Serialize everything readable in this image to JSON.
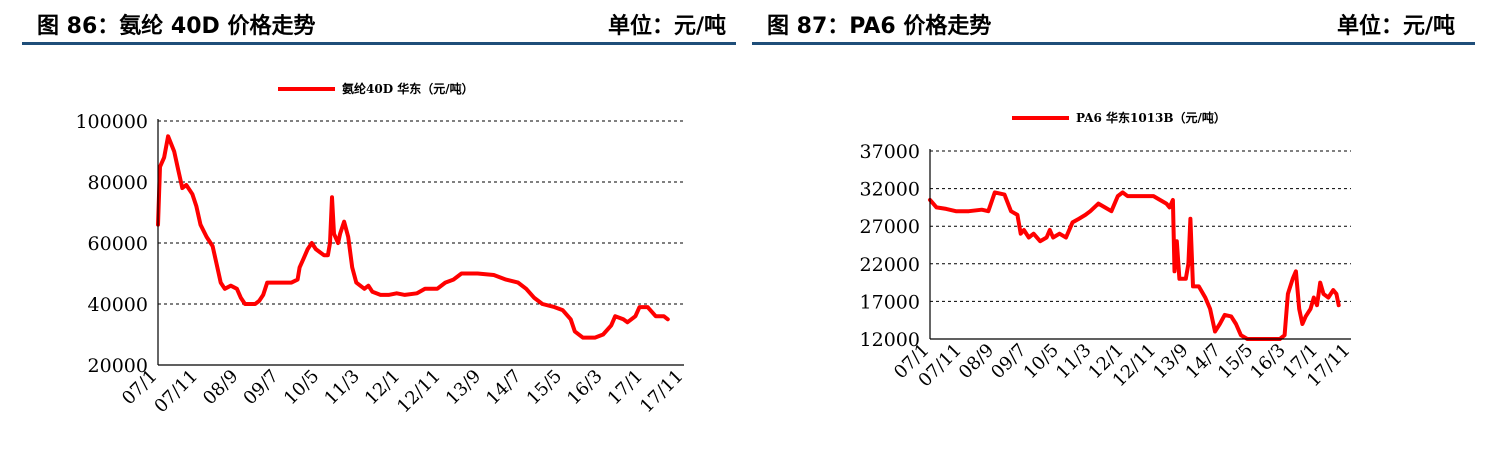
{
  "panels": [
    {
      "title": "图 86：氨纶 40D 价格走势",
      "unit": "单位：元/吨",
      "chart_data": {
        "type": "line",
        "legend_position": "top",
        "grid": true,
        "ylim": [
          20000,
          100000
        ],
        "yticks": [
          "100000",
          "80000",
          "60000",
          "40000",
          "20000"
        ],
        "xticks": [
          "07/1",
          "07/11",
          "08/9",
          "09/7",
          "10/5",
          "11/3",
          "12/1",
          "12/11",
          "13/9",
          "14/7",
          "15/5",
          "16/3",
          "17/1",
          "17/11"
        ],
        "series": [
          {
            "name": "氨纶40D 华东（元/吨）",
            "color": "#ff0000",
            "points": [
              [
                0,
                66000
              ],
              [
                0.05,
                85000
              ],
              [
                0.15,
                88000
              ],
              [
                0.25,
                95000
              ],
              [
                0.4,
                90000
              ],
              [
                0.5,
                84000
              ],
              [
                0.6,
                78000
              ],
              [
                0.7,
                79000
              ],
              [
                0.85,
                76000
              ],
              [
                0.95,
                72000
              ],
              [
                1.05,
                66000
              ],
              [
                1.2,
                62000
              ],
              [
                1.35,
                59000
              ],
              [
                1.45,
                53000
              ],
              [
                1.55,
                47000
              ],
              [
                1.65,
                45000
              ],
              [
                1.8,
                46000
              ],
              [
                1.95,
                45000
              ],
              [
                2.05,
                42000
              ],
              [
                2.15,
                40000
              ],
              [
                2.4,
                40000
              ],
              [
                2.5,
                41000
              ],
              [
                2.6,
                43000
              ],
              [
                2.7,
                47000
              ],
              [
                3.0,
                47000
              ],
              [
                3.3,
                47000
              ],
              [
                3.45,
                48000
              ],
              [
                3.5,
                52000
              ],
              [
                3.6,
                55000
              ],
              [
                3.7,
                58000
              ],
              [
                3.8,
                60000
              ],
              [
                3.9,
                58000
              ],
              [
                4.0,
                57000
              ],
              [
                4.1,
                56000
              ],
              [
                4.2,
                56000
              ],
              [
                4.25,
                60000
              ],
              [
                4.3,
                75000
              ],
              [
                4.35,
                63000
              ],
              [
                4.45,
                60000
              ],
              [
                4.5,
                63000
              ],
              [
                4.6,
                67000
              ],
              [
                4.7,
                62000
              ],
              [
                4.8,
                52000
              ],
              [
                4.9,
                47000
              ],
              [
                5.0,
                46000
              ],
              [
                5.1,
                45000
              ],
              [
                5.2,
                46000
              ],
              [
                5.3,
                44000
              ],
              [
                5.5,
                43000
              ],
              [
                5.7,
                43000
              ],
              [
                5.9,
                43500
              ],
              [
                6.1,
                43000
              ],
              [
                6.4,
                43500
              ],
              [
                6.6,
                45000
              ],
              [
                6.9,
                45000
              ],
              [
                7.1,
                47000
              ],
              [
                7.3,
                48000
              ],
              [
                7.5,
                50000
              ],
              [
                7.9,
                50000
              ],
              [
                8.3,
                49500
              ],
              [
                8.6,
                48000
              ],
              [
                8.9,
                47000
              ],
              [
                9.1,
                45000
              ],
              [
                9.3,
                42000
              ],
              [
                9.5,
                40000
              ],
              [
                9.8,
                39000
              ],
              [
                10.0,
                38000
              ],
              [
                10.2,
                35000
              ],
              [
                10.3,
                31000
              ],
              [
                10.5,
                29000
              ],
              [
                10.8,
                29000
              ],
              [
                11.0,
                30000
              ],
              [
                11.2,
                33000
              ],
              [
                11.3,
                36000
              ],
              [
                11.5,
                35000
              ],
              [
                11.6,
                34000
              ],
              [
                11.8,
                36000
              ],
              [
                11.9,
                39000
              ],
              [
                12.1,
                39000
              ],
              [
                12.3,
                36000
              ],
              [
                12.5,
                36000
              ],
              [
                12.6,
                35000
              ]
            ]
          }
        ]
      }
    },
    {
      "title": "图 87：PA6 价格走势",
      "unit": "单位：元/吨",
      "chart_data": {
        "type": "line",
        "legend_position": "top",
        "grid": true,
        "ylim": [
          12000,
          37000
        ],
        "yticks": [
          "37000",
          "32000",
          "27000",
          "22000",
          "17000",
          "12000"
        ],
        "xticks": [
          "07/1",
          "07/11",
          "08/9",
          "09/7",
          "10/5",
          "11/3",
          "12/1",
          "12/11",
          "13/9",
          "14/7",
          "15/5",
          "16/3",
          "17/1",
          "17/11"
        ],
        "series": [
          {
            "name": "PA6 华东1013B（元/吨）",
            "color": "#ff0000",
            "points": [
              [
                0,
                30500
              ],
              [
                0.1,
                30000
              ],
              [
                0.2,
                29500
              ],
              [
                0.5,
                29300
              ],
              [
                0.8,
                29000
              ],
              [
                1.2,
                29000
              ],
              [
                1.6,
                29200
              ],
              [
                1.8,
                29000
              ],
              [
                2.0,
                31500
              ],
              [
                2.3,
                31200
              ],
              [
                2.5,
                29000
              ],
              [
                2.7,
                28500
              ],
              [
                2.8,
                26000
              ],
              [
                2.9,
                26500
              ],
              [
                3.05,
                25500
              ],
              [
                3.2,
                26000
              ],
              [
                3.4,
                25000
              ],
              [
                3.6,
                25500
              ],
              [
                3.7,
                26500
              ],
              [
                3.8,
                25500
              ],
              [
                4.0,
                26000
              ],
              [
                4.2,
                25500
              ],
              [
                4.4,
                27500
              ],
              [
                4.6,
                28000
              ],
              [
                4.8,
                28500
              ],
              [
                4.95,
                29000
              ],
              [
                5.2,
                30000
              ],
              [
                5.4,
                29500
              ],
              [
                5.6,
                29000
              ],
              [
                5.8,
                31000
              ],
              [
                5.95,
                31500
              ],
              [
                6.1,
                31000
              ],
              [
                6.5,
                31000
              ],
              [
                6.9,
                31000
              ],
              [
                7.1,
                30500
              ],
              [
                7.3,
                30000
              ],
              [
                7.4,
                29500
              ],
              [
                7.5,
                30500
              ],
              [
                7.55,
                21000
              ],
              [
                7.62,
                25000
              ],
              [
                7.7,
                20000
              ],
              [
                7.9,
                20000
              ],
              [
                7.98,
                22000
              ],
              [
                8.04,
                28000
              ],
              [
                8.12,
                19000
              ],
              [
                8.3,
                19000
              ],
              [
                8.5,
                17500
              ],
              [
                8.65,
                16000
              ],
              [
                8.8,
                13000
              ],
              [
                8.95,
                14000
              ],
              [
                9.1,
                15200
              ],
              [
                9.3,
                15000
              ],
              [
                9.45,
                14000
              ],
              [
                9.6,
                12500
              ],
              [
                9.8,
                12000
              ],
              [
                10.2,
                12000
              ],
              [
                10.5,
                12000
              ],
              [
                10.8,
                12000
              ],
              [
                10.95,
                12500
              ],
              [
                11.05,
                18000
              ],
              [
                11.2,
                20000
              ],
              [
                11.3,
                21000
              ],
              [
                11.4,
                16000
              ],
              [
                11.5,
                14000
              ],
              [
                11.6,
                15000
              ],
              [
                11.75,
                16000
              ],
              [
                11.85,
                17500
              ],
              [
                11.95,
                16500
              ],
              [
                12.05,
                19500
              ],
              [
                12.15,
                18000
              ],
              [
                12.3,
                17500
              ],
              [
                12.45,
                18500
              ],
              [
                12.55,
                18000
              ],
              [
                12.62,
                16500
              ]
            ]
          }
        ]
      }
    }
  ]
}
